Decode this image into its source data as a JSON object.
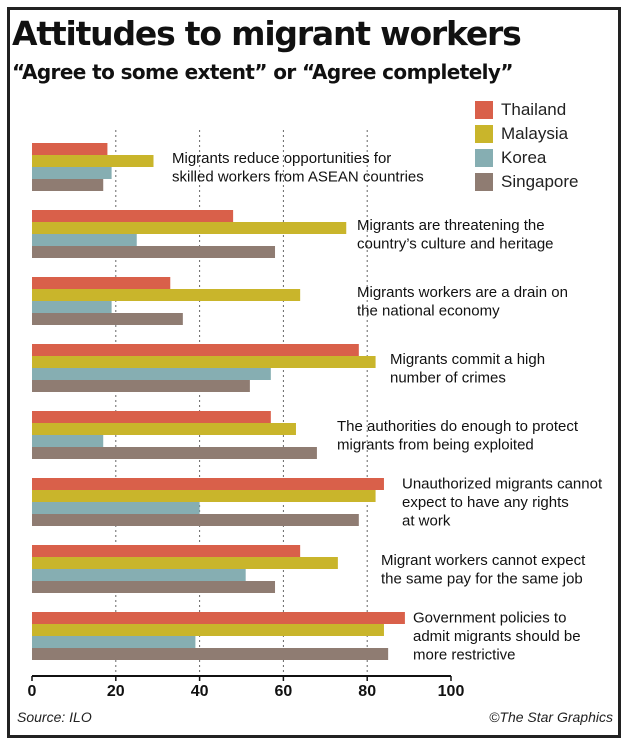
{
  "title": "Attitudes to migrant workers",
  "subtitle": "“Agree to some extent” or “Agree completely”",
  "source": "Source: ILO",
  "credit": "©The Star Graphics",
  "colors": {
    "Thailand": "#d9604a",
    "Malaysia": "#c9b52b",
    "Korea": "#86aeb2",
    "Singapore": "#8f7c72"
  },
  "chart_data": {
    "type": "bar",
    "orientation": "horizontal",
    "xlim": [
      0,
      100
    ],
    "xticks": [
      0,
      20,
      40,
      60,
      80,
      100
    ],
    "grid": "dashed vertical at 20, 40, 60, 80",
    "legend_position": "top-right",
    "categories": [
      [
        "Migrants reduce opportunities for",
        "skilled workers from ASEAN countries"
      ],
      [
        "Migrants are threatening the",
        "country’s culture and heritage"
      ],
      [
        "Migrants workers are a drain on",
        "the national economy"
      ],
      [
        "Migrants commit a high",
        "number of crimes"
      ],
      [
        "The authorities do enough to protect",
        "migrants from being exploited"
      ],
      [
        "Unauthorized migrants cannot",
        "expect  to have any rights",
        "at work"
      ],
      [
        "Migrant workers cannot expect",
        "the  same pay for the same job"
      ],
      [
        "Government policies to",
        "admit migrants should be",
        "more restrictive"
      ]
    ],
    "series": [
      {
        "name": "Thailand",
        "values": [
          18,
          48,
          33,
          78,
          57,
          84,
          64,
          89
        ]
      },
      {
        "name": "Malaysia",
        "values": [
          29,
          75,
          64,
          82,
          63,
          82,
          73,
          84
        ]
      },
      {
        "name": "Korea",
        "values": [
          19,
          25,
          19,
          57,
          17,
          40,
          51,
          39
        ]
      },
      {
        "name": "Singapore",
        "values": [
          17,
          58,
          36,
          52,
          68,
          78,
          58,
          85
        ]
      }
    ]
  }
}
